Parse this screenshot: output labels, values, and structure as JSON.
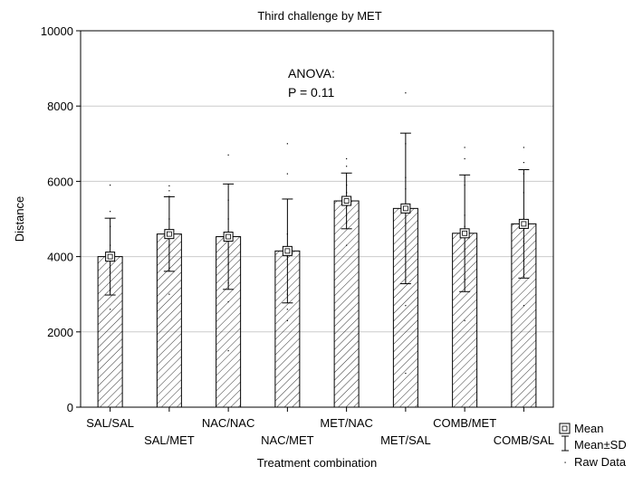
{
  "chart_data": {
    "type": "bar",
    "title": "Third challenge by MET",
    "xlabel": "Treatment combination",
    "ylabel": "Distance",
    "ylim": [
      0,
      10000
    ],
    "yticks": [
      0,
      2000,
      4000,
      6000,
      8000,
      10000
    ],
    "grid": true,
    "categories": [
      "SAL/SAL",
      "SAL/MET",
      "NAC/NAC",
      "NAC/MET",
      "MET/NAC",
      "MET/SAL",
      "COMB/MET",
      "COMB/SAL"
    ],
    "series": [
      {
        "values": [
          4000,
          4600,
          4530,
          4150,
          5480,
          5280,
          4620,
          4870
        ],
        "sd": [
          1020,
          990,
          1400,
          1380,
          740,
          2000,
          1550,
          1440
        ]
      }
    ],
    "raw_data": [
      [
        2600,
        3100,
        3600,
        4000,
        4300,
        4800,
        5200,
        5900
      ],
      [
        3000,
        3700,
        4300,
        4700,
        5000,
        5600,
        5750,
        5880
      ],
      [
        1500,
        2800,
        3300,
        3800,
        4500,
        5000,
        5500,
        6700
      ],
      [
        2300,
        2600,
        3000,
        4000,
        4200,
        4600,
        6200,
        7000
      ],
      [
        4300,
        4900,
        5100,
        5400,
        5700,
        5900,
        6400,
        6600
      ],
      [
        900,
        2700,
        4000,
        4900,
        5800,
        6100,
        7000,
        8350
      ],
      [
        2300,
        3400,
        4200,
        4800,
        5100,
        5900,
        6600,
        6900
      ],
      [
        2700,
        3900,
        4400,
        5000,
        5700,
        6200,
        6500,
        6900
      ]
    ],
    "annotation": {
      "line1": "ANOVA:",
      "line2": "P = 0.11"
    },
    "legend": {
      "placement": "bottom-right",
      "items": [
        "Mean",
        "Mean±SD",
        "Raw Data"
      ]
    }
  }
}
